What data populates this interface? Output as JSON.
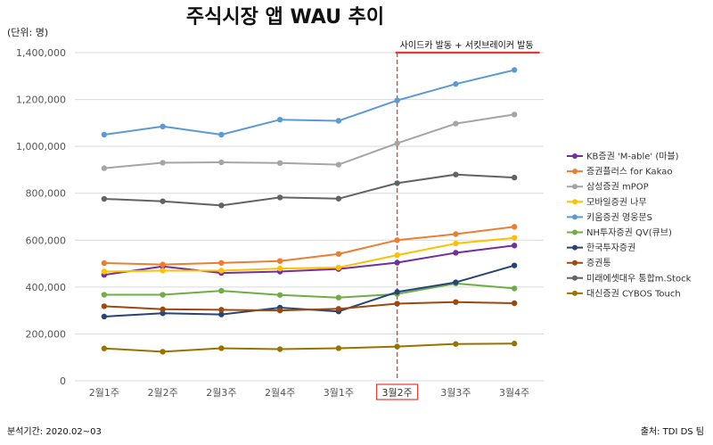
{
  "chart_data": {
    "type": "line",
    "title": "주식시장 앱 WAU 추이",
    "unit_label": "(단위: 명)",
    "ylim": [
      0,
      1400000
    ],
    "yticks": [
      0,
      200000,
      400000,
      600000,
      800000,
      1000000,
      1200000,
      1400000
    ],
    "ytick_labels": [
      "0",
      "200,000",
      "400,000",
      "600,000",
      "800,000",
      "1,000,000",
      "1,200,000",
      "1,400,000"
    ],
    "grid": true,
    "legend_position": "right",
    "categories": [
      "2월1주",
      "2월2주",
      "2월3주",
      "2월4주",
      "3월1주",
      "3월2주",
      "3월3주",
      "3월4주"
    ],
    "highlight_category_index": 5,
    "highlight_color": "#e53935",
    "annotation": "사이드카 발동 + 서킷브레이커 발동",
    "series": [
      {
        "name": "KB증권 'M-able' (마블)",
        "color": "#7030a0",
        "values": [
          452000,
          488000,
          460000,
          466000,
          477000,
          504000,
          546000,
          577000
        ]
      },
      {
        "name": "증권플러스 for Kakao",
        "color": "#ed7d31",
        "values": [
          502000,
          496000,
          503000,
          511000,
          541000,
          600000,
          626000,
          657000
        ]
      },
      {
        "name": "삼성증권 mPOP",
        "color": "#a5a5a5",
        "values": [
          907000,
          930000,
          932000,
          929000,
          922000,
          1013000,
          1097000,
          1136000
        ]
      },
      {
        "name": "모바일증권 나무",
        "color": "#ffc000",
        "values": [
          466000,
          470000,
          470000,
          479000,
          483000,
          536000,
          586000,
          610000
        ]
      },
      {
        "name": "키움증권 영웅문S",
        "color": "#5b9bd5",
        "values": [
          1050000,
          1085000,
          1050000,
          1114000,
          1109000,
          1196000,
          1266000,
          1326000
        ]
      },
      {
        "name": "NH투자증권 QV(큐브)",
        "color": "#70ad47",
        "values": [
          367000,
          367000,
          384000,
          366000,
          355000,
          370000,
          415000,
          394000
        ]
      },
      {
        "name": "한국투자증권",
        "color": "#264478",
        "values": [
          274000,
          288000,
          283000,
          312000,
          296000,
          379000,
          420000,
          492000
        ]
      },
      {
        "name": "증권통",
        "color": "#9e480e",
        "values": [
          318000,
          305000,
          303000,
          300000,
          307000,
          329000,
          336000,
          331000
        ]
      },
      {
        "name": "미래에셋대우 통합m.Stock",
        "color": "#636363",
        "values": [
          776000,
          766000,
          748000,
          782000,
          777000,
          843000,
          880000,
          867000
        ]
      },
      {
        "name": "대신증권 CYBOS Touch",
        "color": "#997300",
        "values": [
          138000,
          124000,
          139000,
          135000,
          139000,
          146000,
          157000,
          159000
        ]
      }
    ]
  },
  "footer": {
    "period": "분석기간: 2020.02~03",
    "source": "출처: TDI DS 팀"
  }
}
